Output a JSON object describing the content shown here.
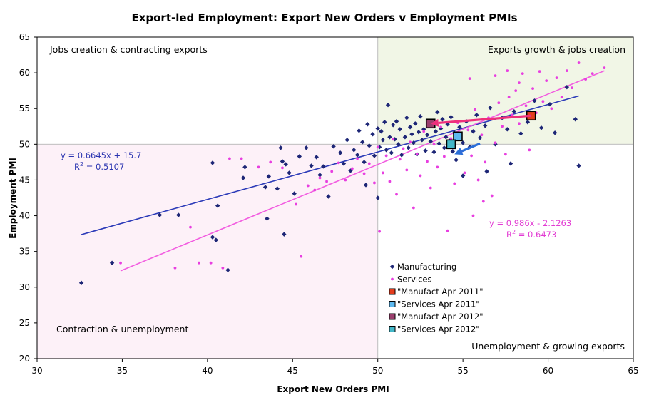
{
  "chart_data": {
    "type": "scatter",
    "title": "Export-led Employment: Export New Orders v Employment PMIs",
    "xlabel": "Export New Orders PMI",
    "ylabel": "Employment PMI",
    "xlim": [
      30,
      65
    ],
    "ylim": [
      20,
      65
    ],
    "xticks": [
      "30",
      "35",
      "40",
      "45",
      "50",
      "55",
      "60",
      "65"
    ],
    "yticks": [
      "20",
      "25",
      "30",
      "35",
      "40",
      "45",
      "50",
      "55",
      "60",
      "65"
    ],
    "quadrants": {
      "top_left": "Jobs creation & contracting exports",
      "top_right": "Exports growth & jobs creation",
      "bottom_left": "Contraction & unemployment",
      "bottom_right": "Unemployment & growing exports"
    },
    "shaded_regions": [
      {
        "name": "exports-growth-jobs-creation",
        "x": [
          50,
          65
        ],
        "y": [
          50,
          65
        ],
        "color": "#f1f6e6"
      },
      {
        "name": "contraction-unemployment",
        "x": [
          30,
          50
        ],
        "y": [
          20,
          50
        ],
        "color": "#fdf1f8"
      }
    ],
    "series": [
      {
        "name": "Manufacturing",
        "color": "#1d2676",
        "marker": "diamond",
        "points": [
          [
            32.6,
            30.6
          ],
          [
            34.4,
            33.4
          ],
          [
            37.2,
            40.1
          ],
          [
            38.3,
            40.1
          ],
          [
            40.3,
            37.0
          ],
          [
            40.5,
            36.6
          ],
          [
            40.3,
            47.4
          ],
          [
            40.6,
            41.4
          ],
          [
            41.2,
            32.4
          ],
          [
            42.1,
            45.3
          ],
          [
            42.2,
            46.8
          ],
          [
            43.4,
            44.0
          ],
          [
            43.5,
            39.6
          ],
          [
            43.6,
            45.5
          ],
          [
            44.1,
            43.8
          ],
          [
            44.3,
            49.5
          ],
          [
            44.4,
            47.6
          ],
          [
            44.6,
            47.2
          ],
          [
            44.8,
            46.0
          ],
          [
            44.5,
            37.4
          ],
          [
            45.1,
            43.1
          ],
          [
            45.4,
            48.3
          ],
          [
            45.8,
            49.5
          ],
          [
            46.1,
            47.0
          ],
          [
            46.4,
            48.2
          ],
          [
            46.6,
            45.7
          ],
          [
            46.8,
            46.9
          ],
          [
            47.1,
            42.7
          ],
          [
            47.4,
            49.7
          ],
          [
            47.8,
            48.8
          ],
          [
            48.0,
            47.3
          ],
          [
            48.2,
            50.6
          ],
          [
            48.4,
            46.3
          ],
          [
            48.6,
            49.2
          ],
          [
            48.8,
            48.5
          ],
          [
            48.9,
            51.9
          ],
          [
            49.1,
            50.3
          ],
          [
            49.2,
            47.5
          ],
          [
            49.4,
            52.8
          ],
          [
            49.5,
            49.8
          ],
          [
            49.7,
            51.4
          ],
          [
            49.8,
            48.4
          ],
          [
            50.0,
            52.2
          ],
          [
            50.1,
            49.6
          ],
          [
            50.2,
            51.8
          ],
          [
            50.3,
            50.6
          ],
          [
            50.4,
            53.1
          ],
          [
            50.5,
            49.2
          ],
          [
            50.6,
            55.5
          ],
          [
            50.7,
            51.0
          ],
          [
            50.8,
            48.8
          ],
          [
            50.9,
            52.7
          ],
          [
            51.0,
            50.7
          ],
          [
            51.1,
            53.2
          ],
          [
            51.2,
            50.0
          ],
          [
            51.3,
            52.1
          ],
          [
            51.4,
            48.5
          ],
          [
            51.6,
            51.0
          ],
          [
            51.7,
            53.7
          ],
          [
            51.8,
            49.5
          ],
          [
            51.9,
            52.4
          ],
          [
            52.0,
            51.4
          ],
          [
            52.1,
            50.2
          ],
          [
            52.2,
            52.9
          ],
          [
            52.3,
            48.6
          ],
          [
            52.4,
            51.7
          ],
          [
            52.5,
            53.9
          ],
          [
            52.6,
            50.6
          ],
          [
            52.7,
            52.1
          ],
          [
            52.8,
            49.1
          ],
          [
            52.9,
            51.3
          ],
          [
            53.0,
            53.0
          ],
          [
            53.1,
            50.4
          ],
          [
            53.2,
            52.6
          ],
          [
            53.3,
            48.9
          ],
          [
            53.4,
            51.8
          ],
          [
            53.5,
            54.5
          ],
          [
            53.6,
            50.1
          ],
          [
            53.7,
            52.2
          ],
          [
            53.8,
            53.5
          ],
          [
            53.9,
            49.5
          ],
          [
            54.0,
            51.0
          ],
          [
            54.1,
            52.8
          ],
          [
            54.2,
            50.5
          ],
          [
            54.3,
            53.8
          ],
          [
            54.4,
            49.0
          ],
          [
            54.5,
            51.6
          ],
          [
            54.6,
            47.8
          ],
          [
            54.8,
            52.4
          ],
          [
            55.0,
            50.2
          ],
          [
            55.2,
            53.2
          ],
          [
            55.4,
            49.6
          ],
          [
            55.6,
            51.8
          ],
          [
            55.8,
            54.1
          ],
          [
            56.0,
            50.9
          ],
          [
            56.3,
            52.6
          ],
          [
            56.6,
            55.1
          ],
          [
            56.9,
            50.0
          ],
          [
            57.3,
            53.7
          ],
          [
            57.6,
            52.1
          ],
          [
            58.0,
            54.6
          ],
          [
            58.4,
            51.5
          ],
          [
            58.8,
            53.1
          ],
          [
            59.2,
            56.1
          ],
          [
            59.6,
            52.3
          ],
          [
            60.1,
            55.6
          ],
          [
            60.4,
            51.6
          ],
          [
            61.1,
            58.0
          ],
          [
            61.6,
            53.5
          ],
          [
            61.8,
            47.0
          ],
          [
            55.0,
            45.6
          ],
          [
            56.4,
            46.2
          ],
          [
            57.8,
            47.3
          ],
          [
            50.0,
            42.5
          ],
          [
            49.3,
            44.3
          ]
        ]
      },
      {
        "name": "Services",
        "color": "#e83fe0",
        "marker": "dot",
        "points": [
          [
            34.9,
            33.4
          ],
          [
            38.1,
            32.7
          ],
          [
            39.0,
            38.4
          ],
          [
            39.5,
            33.4
          ],
          [
            40.2,
            33.4
          ],
          [
            40.9,
            32.7
          ],
          [
            41.3,
            48.0
          ],
          [
            42.0,
            48.0
          ],
          [
            43.0,
            46.8
          ],
          [
            43.7,
            47.5
          ],
          [
            44.4,
            46.7
          ],
          [
            45.2,
            41.6
          ],
          [
            45.5,
            34.3
          ],
          [
            45.9,
            44.2
          ],
          [
            46.3,
            43.6
          ],
          [
            46.6,
            45.3
          ],
          [
            47.0,
            44.8
          ],
          [
            47.3,
            46.2
          ],
          [
            47.7,
            47.4
          ],
          [
            48.1,
            45.0
          ],
          [
            48.5,
            46.6
          ],
          [
            48.8,
            48.0
          ],
          [
            49.2,
            45.9
          ],
          [
            49.5,
            47.3
          ],
          [
            49.8,
            44.6
          ],
          [
            50.0,
            49.6
          ],
          [
            50.1,
            37.8
          ],
          [
            50.3,
            46.0
          ],
          [
            50.5,
            48.4
          ],
          [
            50.7,
            44.8
          ],
          [
            50.9,
            50.7
          ],
          [
            51.1,
            43.0
          ],
          [
            51.3,
            47.9
          ],
          [
            51.5,
            49.4
          ],
          [
            51.7,
            46.4
          ],
          [
            51.9,
            50.3
          ],
          [
            52.1,
            41.1
          ],
          [
            52.3,
            48.6
          ],
          [
            52.5,
            45.6
          ],
          [
            52.7,
            51.8
          ],
          [
            52.9,
            47.6
          ],
          [
            53.1,
            43.9
          ],
          [
            53.3,
            50.0
          ],
          [
            53.5,
            46.8
          ],
          [
            53.7,
            52.4
          ],
          [
            53.9,
            48.3
          ],
          [
            54.1,
            37.9
          ],
          [
            54.3,
            50.8
          ],
          [
            54.5,
            44.5
          ],
          [
            54.7,
            53.0
          ],
          [
            54.9,
            49.0
          ],
          [
            55.1,
            46.0
          ],
          [
            55.3,
            52.0
          ],
          [
            55.5,
            48.4
          ],
          [
            55.7,
            54.9
          ],
          [
            55.9,
            45.0
          ],
          [
            56.1,
            51.3
          ],
          [
            56.3,
            47.5
          ],
          [
            56.5,
            53.7
          ],
          [
            56.7,
            42.8
          ],
          [
            56.9,
            50.2
          ],
          [
            57.1,
            55.8
          ],
          [
            57.3,
            52.5
          ],
          [
            57.5,
            48.6
          ],
          [
            57.7,
            56.6
          ],
          [
            57.9,
            54.1
          ],
          [
            58.1,
            57.5
          ],
          [
            58.3,
            52.9
          ],
          [
            58.5,
            59.9
          ],
          [
            58.7,
            55.4
          ],
          [
            58.9,
            49.2
          ],
          [
            59.1,
            57.8
          ],
          [
            59.3,
            54.4
          ],
          [
            59.5,
            60.2
          ],
          [
            59.7,
            56.0
          ],
          [
            59.9,
            58.9
          ],
          [
            60.2,
            55.0
          ],
          [
            60.5,
            59.3
          ],
          [
            60.8,
            56.6
          ],
          [
            61.1,
            60.3
          ],
          [
            61.4,
            57.9
          ],
          [
            61.8,
            61.4
          ],
          [
            62.2,
            59.1
          ],
          [
            62.6,
            59.9
          ],
          [
            63.3,
            60.7
          ],
          [
            55.4,
            59.2
          ],
          [
            56.9,
            59.6
          ],
          [
            57.6,
            60.3
          ],
          [
            58.3,
            58.6
          ],
          [
            55.6,
            40.0
          ],
          [
            56.2,
            42.0
          ]
        ]
      },
      {
        "name": "\"Manufact Apr 2011\"",
        "color": "#e33d1e",
        "marker": "square",
        "points": [
          [
            59.0,
            54.0
          ]
        ]
      },
      {
        "name": "\"Services Apr 2011\"",
        "color": "#5db9ef",
        "marker": "square",
        "points": [
          [
            54.7,
            51.1
          ]
        ]
      },
      {
        "name": "\"Manufact Apr 2012\"",
        "color": "#9a3f6e",
        "marker": "square",
        "points": [
          [
            53.1,
            52.9
          ]
        ]
      },
      {
        "name": "\"Services Apr 2012\"",
        "color": "#42b7c8",
        "marker": "square",
        "points": [
          [
            54.3,
            50.0
          ]
        ]
      }
    ],
    "trendlines": [
      {
        "series": "Manufacturing",
        "slope": 0.6645,
        "intercept": 15.7,
        "x_range": [
          32.6,
          61.8
        ],
        "color": "#2b3ab8",
        "equation": "y = 0.6645x + 15.7",
        "r2_label": "R",
        "r2_value": " = 0.5107"
      },
      {
        "series": "Services",
        "slope": 0.986,
        "intercept": -2.1263,
        "x_range": [
          34.9,
          63.3
        ],
        "color": "#f25ce0",
        "equation": "y = 0.986x - 2.1263",
        "r2_label": "R",
        "r2_value": " = 0.6473"
      }
    ],
    "arrows": [
      {
        "name": "manufacturing-change-arrow",
        "from": [
          59.0,
          54.0
        ],
        "to": [
          53.1,
          52.9
        ],
        "color": "#ee2f7c"
      },
      {
        "name": "services-change-arrow",
        "from": [
          56.0,
          50.1
        ],
        "to": [
          54.5,
          48.6
        ],
        "color": "#2b6fd8"
      }
    ],
    "legend": {
      "position": "lower-right",
      "items": [
        "Manufacturing",
        "Services",
        "\"Manufact Apr 2011\"",
        "\"Services Apr 2011\"",
        "\"Manufact Apr 2012\"",
        "\"Services Apr 2012\""
      ]
    },
    "grid": false
  }
}
